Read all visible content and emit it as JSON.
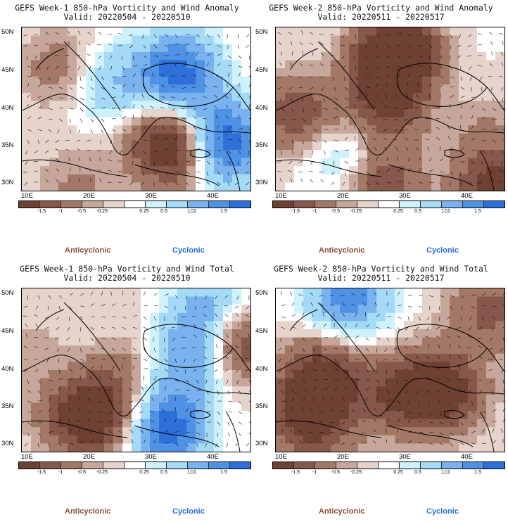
{
  "colorbar": {
    "labels": [
      "-1.5",
      "-1",
      "-0.5",
      "-0.25",
      "0.25",
      "0.5",
      "1",
      "1.5"
    ],
    "unit": "10",
    "colors": [
      "#6e4132",
      "#86574a",
      "#a37867",
      "#c7a79b",
      "#e6d3cc",
      "#ffffff",
      "#cff1fb",
      "#a4daf5",
      "#79b2ee",
      "#4f91e5",
      "#2e6fd9"
    ]
  },
  "legend": {
    "anticyclonic": "Anticyclonic",
    "cyclonic": "Cyclonic"
  },
  "axes": {
    "lat_labels": [
      "50N",
      "45N",
      "40N",
      "35N",
      "30N"
    ],
    "lon_labels": [
      "10E",
      "20E",
      "30E",
      "40E"
    ]
  },
  "panels": [
    {
      "title": "GEFS Week-1 850-hPa Vorticity and Wind Anomaly",
      "valid": "Valid: 20220504 - 20220510",
      "seed": 3
    },
    {
      "title": "GEFS Week-2 850-hPa Vorticity and Wind Anomaly",
      "valid": "Valid: 20220511 - 20220517",
      "seed": 7
    },
    {
      "title": "GEFS Week-1 850-hPa Vorticity and Wind Total",
      "valid": "Valid: 20220504 - 20220510",
      "seed": 11
    },
    {
      "title": "GEFS Week-2 850-hPa Vorticity and Wind Total",
      "valid": "Valid: 20220511 - 20220517",
      "seed": 17
    }
  ]
}
